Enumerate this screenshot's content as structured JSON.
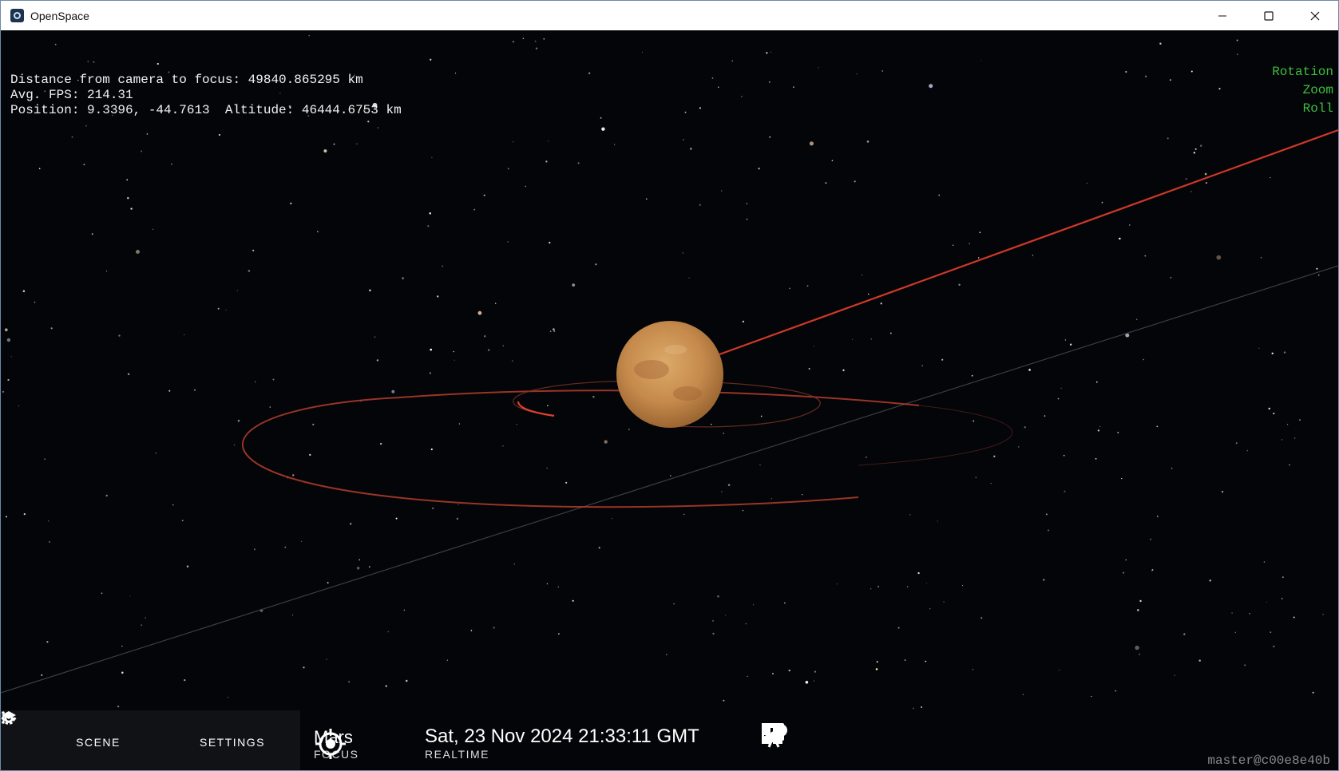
{
  "window": {
    "title": "OpenSpace",
    "minimize_icon": "minimize-icon",
    "maximize_icon": "maximize-icon",
    "close_icon": "close-icon"
  },
  "hud": {
    "distance_line": "Distance from camera to focus: 49840.865295 km",
    "fps_line": "Avg. FPS: 214.31",
    "position_line": "Position: 9.3396, -44.7613  Altitude: 46444.6753 km"
  },
  "nav_indicators": [
    "Rotation",
    "Zoom",
    "Roll"
  ],
  "menu": {
    "scene_label": "SCENE",
    "settings_label": "SETTINGS"
  },
  "focus": {
    "name": "Mars",
    "label": "FOCUS"
  },
  "time": {
    "value": "Sat, 23 Nov 2024 21:33:11 GMT",
    "label": "REALTIME"
  },
  "tools": [
    "camera-icon",
    "location-pin-icon",
    "image-icon",
    "toggle-dots-icon",
    "screen-space-icon",
    "dashboard-icon",
    "telescope-icon"
  ],
  "version": "master@c00e8e40b",
  "colors": {
    "indicator_green": "#3fbf3f",
    "orbit_red": "#e03a2a",
    "mars": "#d4a060"
  }
}
